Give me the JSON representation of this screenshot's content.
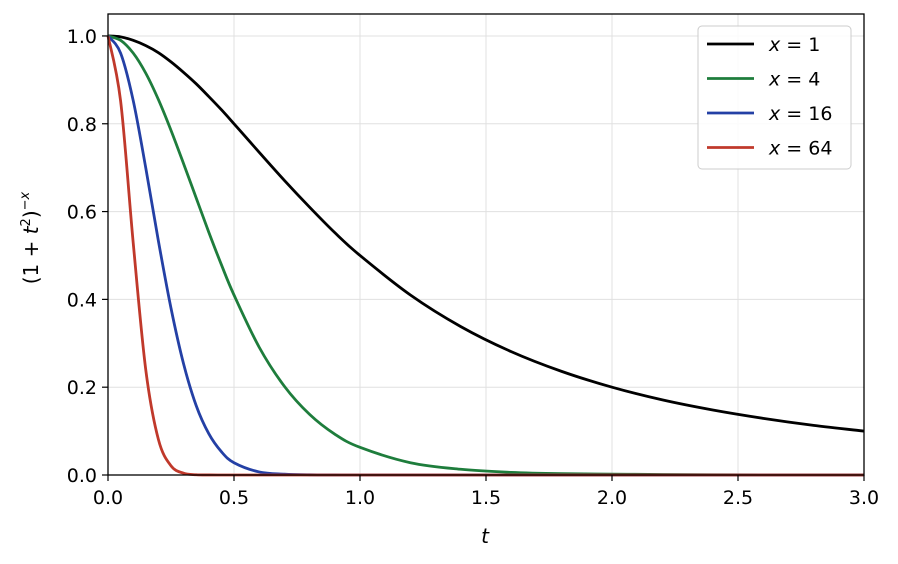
{
  "chart_data": {
    "type": "line",
    "title": "",
    "xlabel": "t",
    "ylabel_parts": {
      "open": "(1 + ",
      "t": "t",
      "t_exp": "2",
      "close": ")",
      "exp_sign": "−",
      "exp_var": "x"
    },
    "xlim": [
      0,
      3
    ],
    "ylim": [
      0,
      1.05
    ],
    "xticks": [
      0.0,
      0.5,
      1.0,
      1.5,
      2.0,
      2.5,
      3.0
    ],
    "xtick_labels": [
      "0.0",
      "0.5",
      "1.0",
      "1.5",
      "2.0",
      "2.5",
      "3.0"
    ],
    "yticks": [
      0.0,
      0.2,
      0.4,
      0.6,
      0.8,
      1.0
    ],
    "ytick_labels": [
      "0.0",
      "0.2",
      "0.4",
      "0.6",
      "0.8",
      "1.0"
    ],
    "grid": true,
    "legend_position": "top-right",
    "x": [
      0,
      0.05,
      0.1,
      0.15,
      0.2,
      0.25,
      0.3,
      0.35,
      0.4,
      0.45,
      0.5,
      0.6,
      0.7,
      0.8,
      0.9,
      1.0,
      1.2,
      1.4,
      1.6,
      1.8,
      2.0,
      2.2,
      2.4,
      2.6,
      2.8,
      3.0
    ],
    "series": [
      {
        "name": "x = 1",
        "var": "x",
        "eq": " = ",
        "num": "1",
        "color": "#000000",
        "values": [
          1.0,
          0.998,
          0.99,
          0.978,
          0.962,
          0.941,
          0.917,
          0.891,
          0.862,
          0.832,
          0.8,
          0.735,
          0.671,
          0.61,
          0.552,
          0.5,
          0.41,
          0.338,
          0.281,
          0.236,
          0.2,
          0.171,
          0.148,
          0.129,
          0.113,
          0.1
        ]
      },
      {
        "name": "x = 4",
        "var": "x",
        "eq": " = ",
        "num": "4",
        "color": "#1e7d3c",
        "values": [
          1.0,
          0.99,
          0.961,
          0.915,
          0.855,
          0.785,
          0.709,
          0.631,
          0.553,
          0.479,
          0.41,
          0.291,
          0.202,
          0.138,
          0.093,
          0.063,
          0.028,
          0.013,
          0.006,
          0.003,
          0.002,
          0.001,
          0.0005,
          0.0003,
          0.0002,
          0.0001
        ]
      },
      {
        "name": "x = 16",
        "var": "x",
        "eq": " = ",
        "num": "16",
        "color": "#2440a5",
        "values": [
          1.0,
          0.961,
          0.853,
          0.699,
          0.533,
          0.38,
          0.253,
          0.158,
          0.094,
          0.053,
          0.028,
          0.007,
          0.002,
          0.0004,
          0.0001,
          0.0,
          0.0,
          0.0,
          0.0,
          0.0,
          0.0,
          0.0,
          0.0,
          0.0,
          0.0,
          0.0
        ]
      },
      {
        "name": "x = 64",
        "var": "x",
        "eq": " = ",
        "num": "64",
        "color": "#c0392b",
        "values": [
          1.0,
          0.852,
          0.529,
          0.239,
          0.081,
          0.021,
          0.004,
          0.0006,
          0.0001,
          0.0,
          0.0,
          0.0,
          0.0,
          0.0,
          0.0,
          0.0,
          0.0,
          0.0,
          0.0,
          0.0,
          0.0,
          0.0,
          0.0,
          0.0,
          0.0,
          0.0
        ]
      }
    ]
  }
}
